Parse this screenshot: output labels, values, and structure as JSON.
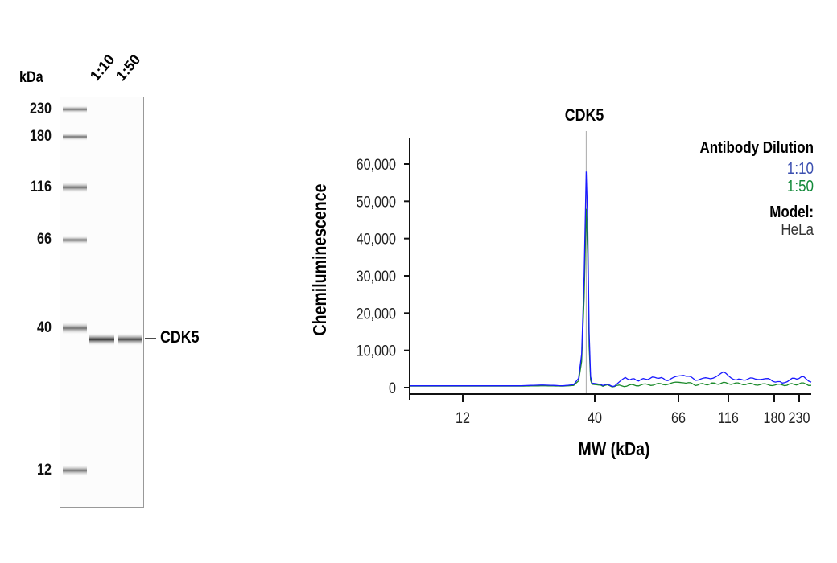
{
  "blot": {
    "unit_label": "kDa",
    "lanes": [
      "1:10",
      "1:50"
    ],
    "markers": [
      "230",
      "180",
      "116",
      "66",
      "40",
      "12"
    ],
    "target_label": "CDK5"
  },
  "chart_data": {
    "type": "line",
    "title": "CDK5",
    "xlabel": "MW (kDa)",
    "ylabel": "Chemiluminescence",
    "xscale": "log (marker-calibrated)",
    "xticks": [
      12,
      40,
      66,
      116,
      180,
      230
    ],
    "xtick_labels": [
      "12",
      "40",
      "66",
      "116",
      "180",
      "230"
    ],
    "yticks": [
      0,
      10000,
      20000,
      30000,
      40000,
      50000,
      60000
    ],
    "ytick_labels": [
      "0",
      "10,000",
      "20,000",
      "30,000",
      "40,000",
      "50,000",
      "60,000"
    ],
    "xlim": [
      7.4,
      259
    ],
    "ylim": [
      0,
      67000
    ],
    "reference_line_x": 37,
    "legend": {
      "title": "Antibody Dilution",
      "placement": "top-right",
      "model_label": "Model:",
      "model_value": "HeLa"
    },
    "series": [
      {
        "name": "1:10",
        "color": "#1a1aff",
        "x": [
          7.4,
          20,
          25,
          30,
          33,
          34.5,
          35.5,
          36.3,
          37,
          37.5,
          38,
          38.5,
          39,
          42,
          45,
          48,
          52,
          58,
          62,
          70,
          80,
          95,
          110,
          125,
          150,
          170,
          195,
          210,
          240,
          259
        ],
        "y": [
          500,
          500,
          700,
          500,
          800,
          2500,
          9000,
          30000,
          58000,
          45000,
          15000,
          3000,
          1200,
          800,
          500,
          2500,
          2000,
          2800,
          2000,
          3500,
          2200,
          2500,
          4000,
          2000,
          2500,
          2200,
          1200,
          2200,
          2800,
          1500
        ]
      },
      {
        "name": "1:50",
        "color": "#1a8a2a",
        "x": [
          7.4,
          20,
          25,
          30,
          33,
          34.5,
          35.5,
          36.3,
          37,
          37.5,
          38,
          38.5,
          39,
          42,
          45,
          52,
          62,
          70,
          80,
          110,
          150,
          195,
          240,
          259
        ],
        "y": [
          400,
          400,
          500,
          400,
          600,
          1800,
          7000,
          24000,
          48000,
          36000,
          11000,
          2000,
          900,
          600,
          400,
          700,
          1000,
          1500,
          800,
          1200,
          900,
          700,
          1100,
          600
        ]
      }
    ]
  }
}
